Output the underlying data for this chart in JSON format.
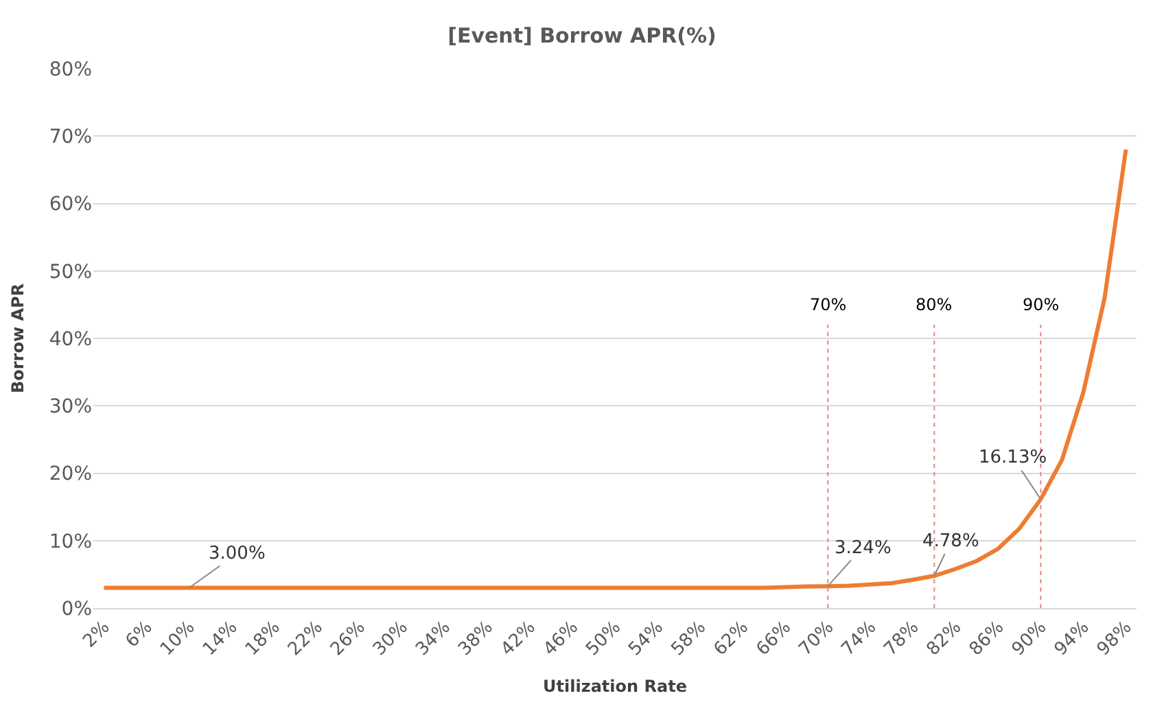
{
  "chart_data": {
    "type": "line",
    "title": "[Event] Borrow APR(%)",
    "xlabel": "Utilization Rate",
    "ylabel": "Borrow APR",
    "x": [
      2,
      4,
      6,
      8,
      10,
      12,
      14,
      16,
      18,
      20,
      22,
      24,
      26,
      28,
      30,
      32,
      34,
      36,
      38,
      40,
      42,
      44,
      46,
      48,
      50,
      52,
      54,
      56,
      58,
      60,
      62,
      64,
      66,
      68,
      70,
      72,
      74,
      76,
      78,
      80,
      82,
      84,
      86,
      88,
      90,
      92,
      94,
      96,
      98
    ],
    "series": [
      {
        "color": "#ed7d31",
        "values": [
          3.0,
          3.0,
          3.0,
          3.0,
          3.0,
          3.0,
          3.0,
          3.0,
          3.0,
          3.0,
          3.0,
          3.0,
          3.0,
          3.0,
          3.0,
          3.0,
          3.0,
          3.0,
          3.0,
          3.0,
          3.0,
          3.0,
          3.0,
          3.0,
          3.0,
          3.0,
          3.0,
          3.0,
          3.0,
          3.0,
          3.0,
          3.0,
          3.1,
          3.2,
          3.24,
          3.3,
          3.5,
          3.7,
          4.2,
          4.78,
          5.8,
          7.0,
          8.8,
          11.8,
          16.13,
          22,
          32,
          46,
          68
        ]
      }
    ],
    "xlim": [
      1,
      99
    ],
    "xticks": [
      {
        "value": 2,
        "label": "2%"
      },
      {
        "value": 6,
        "label": "6%"
      },
      {
        "value": 10,
        "label": "10%"
      },
      {
        "value": 14,
        "label": "14%"
      },
      {
        "value": 18,
        "label": "18%"
      },
      {
        "value": 22,
        "label": "22%"
      },
      {
        "value": 26,
        "label": "26%"
      },
      {
        "value": 30,
        "label": "30%"
      },
      {
        "value": 34,
        "label": "34%"
      },
      {
        "value": 38,
        "label": "38%"
      },
      {
        "value": 42,
        "label": "42%"
      },
      {
        "value": 46,
        "label": "46%"
      },
      {
        "value": 50,
        "label": "50%"
      },
      {
        "value": 54,
        "label": "54%"
      },
      {
        "value": 58,
        "label": "58%"
      },
      {
        "value": 62,
        "label": "62%"
      },
      {
        "value": 66,
        "label": "66%"
      },
      {
        "value": 70,
        "label": "70%"
      },
      {
        "value": 74,
        "label": "74%"
      },
      {
        "value": 78,
        "label": "78%"
      },
      {
        "value": 82,
        "label": "82%"
      },
      {
        "value": 86,
        "label": "86%"
      },
      {
        "value": 90,
        "label": "90%"
      },
      {
        "value": 94,
        "label": "94%"
      },
      {
        "value": 98,
        "label": "98%"
      }
    ],
    "ylim": [
      0,
      80
    ],
    "yticks": [
      {
        "value": 0,
        "label": "0%"
      },
      {
        "value": 10,
        "label": "10%"
      },
      {
        "value": 20,
        "label": "20%"
      },
      {
        "value": 30,
        "label": "30%"
      },
      {
        "value": 40,
        "label": "40%"
      },
      {
        "value": 50,
        "label": "50%"
      },
      {
        "value": 60,
        "label": "60%"
      },
      {
        "value": 70,
        "label": "70%"
      },
      {
        "value": 80,
        "label": "80%"
      }
    ],
    "grid": "y",
    "marker": "none",
    "line_style": "solid",
    "ref_lines": [
      {
        "axis": "x",
        "value": 70,
        "label": "70%",
        "color": "#f08080",
        "line_style": "dotted"
      },
      {
        "axis": "x",
        "value": 80,
        "label": "80%",
        "color": "#f08080",
        "line_style": "dotted"
      },
      {
        "axis": "x",
        "value": 90,
        "label": "90%",
        "color": "#f08080",
        "line_style": "dotted"
      }
    ],
    "annotations": [
      {
        "text": "3.00%",
        "x": 10,
        "y": 3.0
      },
      {
        "text": "3.24%",
        "x": 70,
        "y": 3.24
      },
      {
        "text": "4.78%",
        "x": 80,
        "y": 4.78
      },
      {
        "text": "16.13%",
        "x": 90,
        "y": 16.13
      }
    ]
  }
}
